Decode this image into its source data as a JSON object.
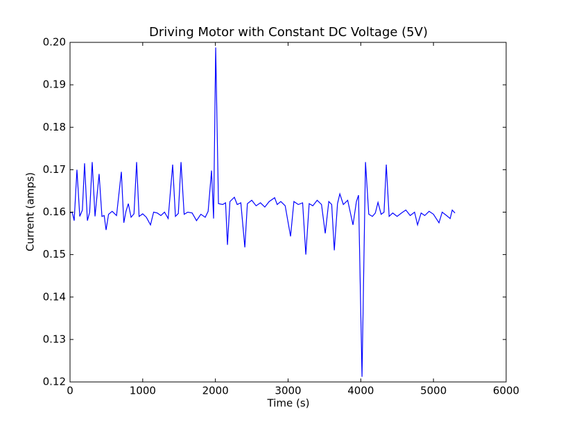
{
  "chart_data": {
    "type": "line",
    "title": "Driving Motor with Constant DC Voltage (5V)",
    "x_label": "Time (s)",
    "y_label": "Current (amps)",
    "x": [
      0,
      30,
      57,
      95,
      134,
      170,
      200,
      239,
      270,
      305,
      344,
      400,
      439,
      470,
      496,
      530,
      580,
      640,
      706,
      740,
      770,
      802,
      840,
      880,
      916,
      950,
      1000,
      1050,
      1107,
      1150,
      1200,
      1250,
      1300,
      1350,
      1412,
      1450,
      1490,
      1527,
      1570,
      1620,
      1680,
      1740,
      1800,
      1860,
      1900,
      1947,
      1975,
      2004,
      2042,
      2100,
      2140,
      2166,
      2200,
      2261,
      2300,
      2350,
      2405,
      2440,
      2500,
      2560,
      2620,
      2680,
      2740,
      2815,
      2850,
      2900,
      2960,
      3034,
      3080,
      3140,
      3200,
      3244,
      3290,
      3340,
      3400,
      3460,
      3511,
      3560,
      3600,
      3636,
      3680,
      3712,
      3760,
      3820,
      3893,
      3940,
      3969,
      4017,
      4065,
      4110,
      4160,
      4200,
      4237,
      4280,
      4320,
      4351,
      4390,
      4440,
      4500,
      4560,
      4620,
      4680,
      4740,
      4781,
      4830,
      4880,
      4940,
      5000,
      5076,
      5120,
      5180,
      5230,
      5258,
      5296
    ],
    "series": [
      {
        "color": "#0000ff",
        "values": [
          0.1598,
          0.16,
          0.158,
          0.17,
          0.159,
          0.1605,
          0.1715,
          0.158,
          0.16,
          0.1718,
          0.159,
          0.169,
          0.159,
          0.1592,
          0.1558,
          0.1595,
          0.1602,
          0.1592,
          0.1695,
          0.1575,
          0.1602,
          0.162,
          0.1588,
          0.1596,
          0.1718,
          0.159,
          0.1596,
          0.1588,
          0.157,
          0.16,
          0.1598,
          0.1592,
          0.16,
          0.1585,
          0.1712,
          0.159,
          0.1597,
          0.1718,
          0.1595,
          0.16,
          0.1598,
          0.158,
          0.1595,
          0.1588,
          0.1602,
          0.1698,
          0.1585,
          0.1988,
          0.162,
          0.1618,
          0.1622,
          0.1523,
          0.1625,
          0.1635,
          0.1618,
          0.1622,
          0.1517,
          0.162,
          0.1628,
          0.1615,
          0.1622,
          0.1612,
          0.1625,
          0.1634,
          0.1618,
          0.1625,
          0.1615,
          0.1543,
          0.1625,
          0.1618,
          0.1622,
          0.15,
          0.162,
          0.1615,
          0.1628,
          0.1618,
          0.155,
          0.1625,
          0.1618,
          0.151,
          0.162,
          0.1643,
          0.1618,
          0.1628,
          0.157,
          0.1625,
          0.164,
          0.1212,
          0.1718,
          0.1595,
          0.159,
          0.1598,
          0.1623,
          0.1595,
          0.16,
          0.1712,
          0.159,
          0.1598,
          0.159,
          0.1598,
          0.1605,
          0.1592,
          0.16,
          0.157,
          0.1598,
          0.1592,
          0.1602,
          0.1595,
          0.1575,
          0.16,
          0.1592,
          0.1585,
          0.1605,
          0.1598
        ]
      }
    ],
    "xlim": [
      0,
      6000
    ],
    "xticks": [
      0,
      1000,
      2000,
      3000,
      4000,
      5000,
      6000
    ],
    "ylim": [
      0.12,
      0.2
    ],
    "yticks": [
      0.12,
      0.13,
      0.14,
      0.15,
      0.16,
      0.17,
      0.18,
      0.19,
      {
        "value": 0.2,
        "label": "0.20"
      }
    ]
  }
}
